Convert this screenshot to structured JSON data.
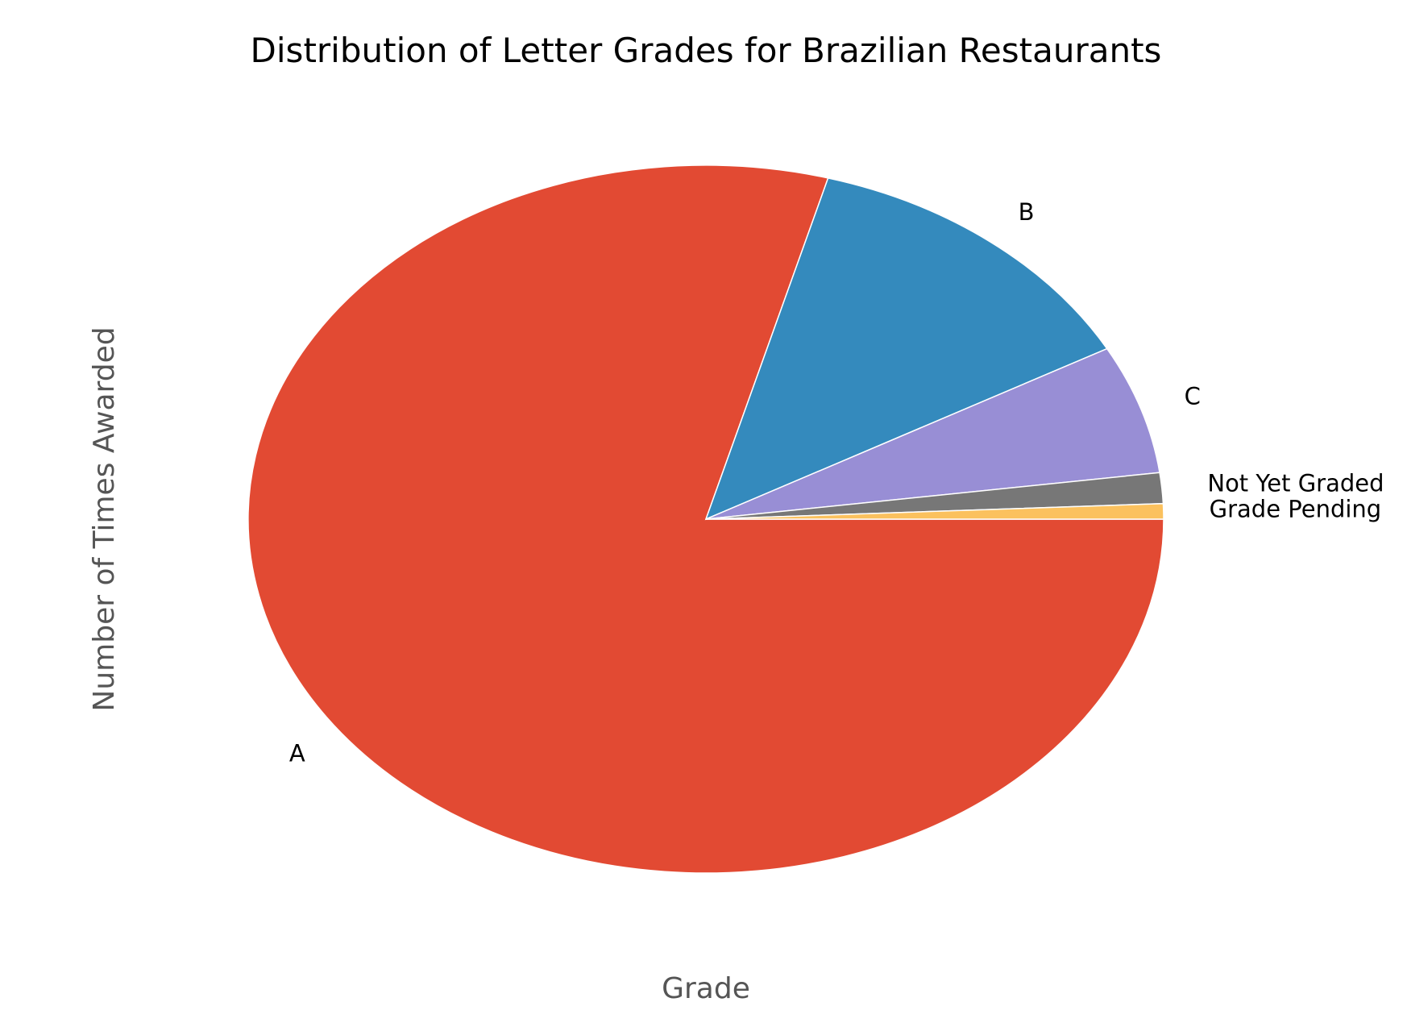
{
  "chart_data": {
    "type": "pie",
    "title": "Distribution of Letter Grades for Brazilian Restaurants",
    "xlabel": "Grade",
    "ylabel": "Number of Times Awarded",
    "categories": [
      "A",
      "B",
      "C",
      "Not Yet Graded",
      "Grade Pending"
    ],
    "values": [
      79.3,
      12.7,
      5.9,
      1.4,
      0.7
    ],
    "colors": [
      "#E24A33",
      "#348ABD",
      "#988ED5",
      "#777777",
      "#FBC15E"
    ],
    "start_angle_deg": 0,
    "direction": "clockwise",
    "legend": "none",
    "grid": false
  }
}
